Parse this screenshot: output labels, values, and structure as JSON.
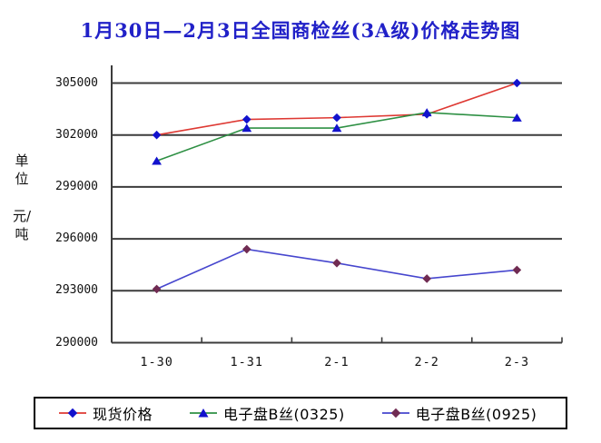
{
  "title": {
    "text": "1月30日—2月3日全国商检丝(3A级)价格走势图",
    "color": "#2121C8"
  },
  "y_axis": {
    "unit_top": "单位",
    "unit_bottom": "元/吨"
  },
  "chart_data": {
    "type": "line",
    "title": "1月30日—2月3日全国商检丝(3A级)价格走势图",
    "categories": [
      "1-30",
      "1-31",
      "2-1",
      "2-2",
      "2-3"
    ],
    "series": [
      {
        "name": "现货价格",
        "line_color": "#DE3933",
        "marker": "diamond",
        "marker_color": "#1212CD",
        "values": [
          302000,
          302900,
          303000,
          303200,
          305000
        ]
      },
      {
        "name": "电子盘B丝(0325)",
        "line_color": "#2E9044",
        "marker": "triangle",
        "marker_color": "#1212CD",
        "values": [
          300500,
          302400,
          302400,
          303300,
          303000
        ]
      },
      {
        "name": "电子盘B丝(0925)",
        "line_color": "#4646CE",
        "marker": "diamond",
        "marker_color": "#702B52",
        "values": [
          293100,
          295400,
          294600,
          293700,
          294200
        ]
      }
    ],
    "ylabel": "单位 元/吨",
    "xlabel": "",
    "ylim": [
      290000,
      305000
    ],
    "ytick_step": 3000,
    "yticks": [
      290000,
      293000,
      296000,
      299000,
      302000,
      305000
    ],
    "grid": "horizontal",
    "legend_position": "bottom",
    "axis_color": "#3C3C3C"
  },
  "legend": {
    "items": [
      "现货价格",
      "电子盘B丝(0325)",
      "电子盘B丝(0925)"
    ]
  }
}
